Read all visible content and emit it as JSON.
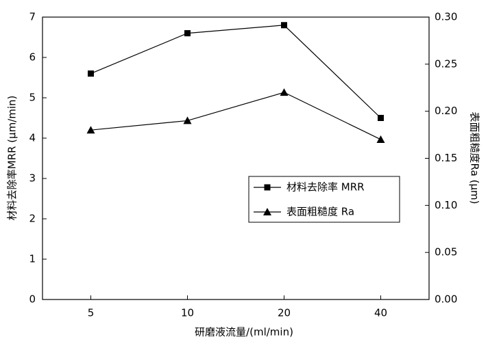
{
  "chart_data": {
    "type": "line",
    "x_label": "研磨液流量/(ml/min)",
    "y_label": "材料去除率MRR (μm/min)",
    "y2_label": "表面粗糙度Ra (μm)",
    "categories": [
      "5",
      "10",
      "20",
      "40"
    ],
    "series": [
      {
        "name": "材料去除率 MRR",
        "color": "#000000",
        "marker": "square",
        "values": [
          5.6,
          6.6,
          6.8,
          4.5
        ]
      },
      {
        "name": "表面粗糙度 Ra",
        "color": "#000000",
        "marker": "triangle",
        "axis": "y2",
        "values": [
          0.18,
          0.19,
          0.22,
          0.17
        ]
      }
    ],
    "ylim": [
      0,
      7
    ],
    "yticks": [
      0,
      1,
      2,
      3,
      4,
      5,
      6,
      7
    ],
    "y2lim": [
      0,
      0.3
    ],
    "y2ticks": [
      {
        "value": 0,
        "label": "0.00"
      },
      0.05,
      {
        "value": 0.1,
        "label": "0.10"
      },
      0.15,
      {
        "value": 0.2,
        "label": "0.20"
      },
      0.25,
      {
        "value": 0.3,
        "label": "0.30"
      }
    ],
    "legend": "center-right"
  }
}
